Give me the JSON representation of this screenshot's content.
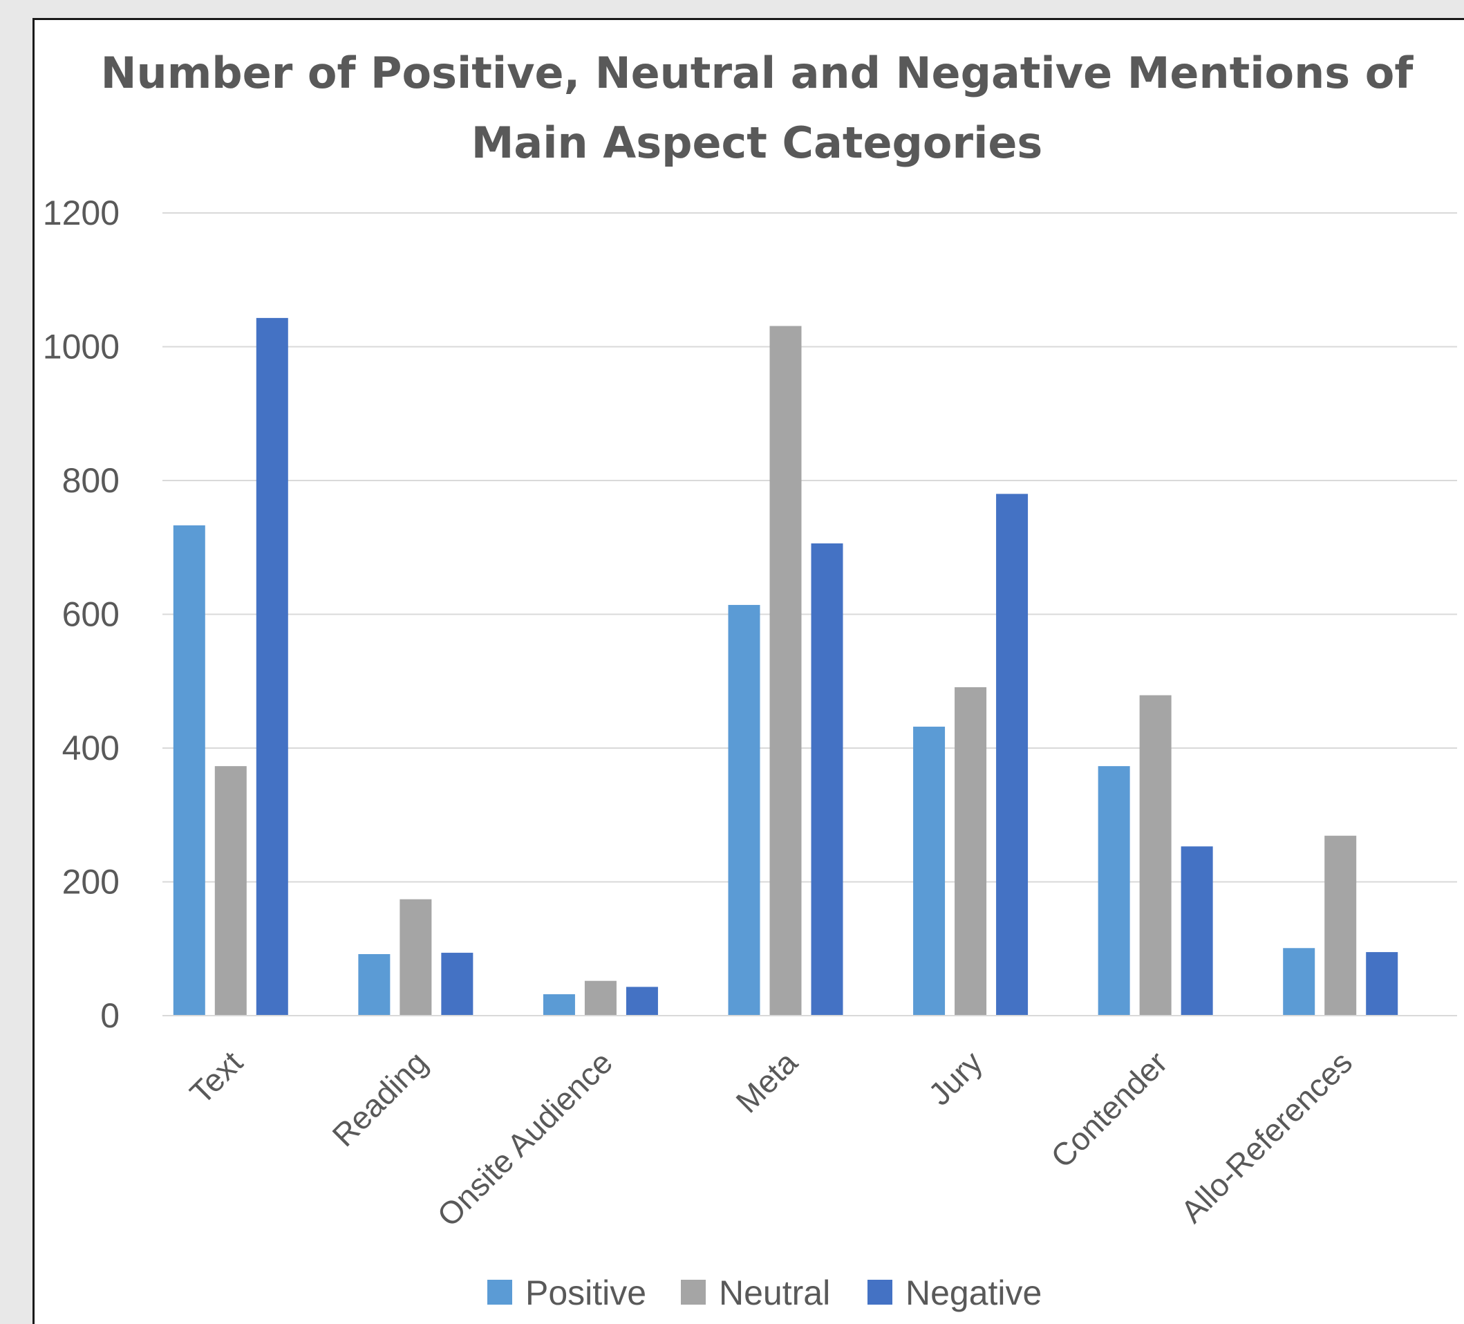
{
  "chart_data": {
    "type": "bar",
    "title": "Number of Positive, Neutral and Negative Mentions of Main Aspect Categories",
    "title_lines": [
      "Number of Positive, Neutral and Negative Mentions of",
      "Main Aspect Categories"
    ],
    "categories": [
      "Text",
      "Reading",
      "Onsite Audience",
      "Meta",
      "Jury",
      "Contender",
      "Allo-References"
    ],
    "series": [
      {
        "name": "Positive",
        "color": "#5b9bd5",
        "values": [
          733,
          92,
          32,
          614,
          432,
          373,
          101
        ]
      },
      {
        "name": "Neutral",
        "color": "#a5a5a5",
        "values": [
          373,
          174,
          52,
          1031,
          491,
          479,
          269
        ]
      },
      {
        "name": "Negative",
        "color": "#4472c4",
        "values": [
          1043,
          94,
          43,
          706,
          780,
          253,
          95
        ]
      }
    ],
    "ylim": [
      0,
      1200
    ],
    "yticks": [
      0,
      200,
      400,
      600,
      800,
      1000,
      1200
    ],
    "xlabel": "",
    "ylabel": "",
    "grid": true,
    "legend_position": "bottom"
  }
}
